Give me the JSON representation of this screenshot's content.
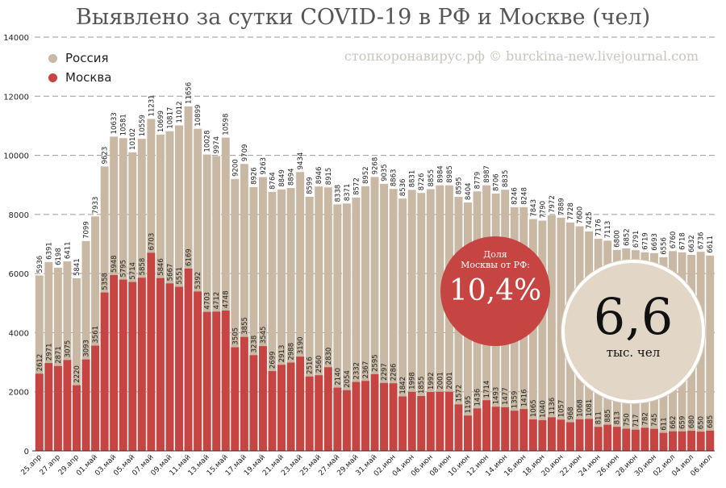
{
  "title": "Выявлено за сутки COVID-19 в РФ и Москве (чел)",
  "source": "стопкоронавирус.рф © burckina-new.livejournal.com",
  "legend": {
    "russia": "Россия",
    "moscow": "Москва"
  },
  "colors": {
    "russia": "#c9b8a3",
    "moscow": "#c64441",
    "grid": "#9a9a9a"
  },
  "share_label_1": "Доля",
  "share_label_2": "Москвы от РФ:",
  "share_value": "10,4%",
  "total_value": "6,6",
  "total_unit": "тыс. чел",
  "chart_data": {
    "type": "bar",
    "stacked": "overlay",
    "ylim": [
      0,
      14000
    ],
    "yticks": [
      0,
      2000,
      4000,
      6000,
      8000,
      10000,
      12000,
      14000
    ],
    "grid": true,
    "legend_position": "top-left",
    "x_tick_labels": [
      "25.апр",
      "27.апр",
      "29.апр",
      "01.май",
      "03.май",
      "05.май",
      "07.май",
      "09.май",
      "11.май",
      "13.май",
      "15.май",
      "17.май",
      "19.май",
      "21.май",
      "23.май",
      "25.май",
      "27.май",
      "29.май",
      "31.май",
      "02.июн",
      "04.июн",
      "06.июн",
      "08.июн",
      "10.июн",
      "12.июн",
      "14.июн",
      "16.июн",
      "18.июн",
      "20.июн",
      "22.июн",
      "24.июн",
      "26.июн",
      "28.июн",
      "30.июн",
      "02.июл",
      "04.июл",
      "06.июл"
    ],
    "series": [
      {
        "name": "Россия",
        "values": [
          5936,
          6391,
          6198,
          6411,
          5841,
          7099,
          7933,
          9623,
          10633,
          10581,
          10102,
          10559,
          11231,
          10699,
          10817,
          11012,
          11656,
          10899,
          10028,
          9974,
          10598,
          9200,
          9709,
          8926,
          9263,
          8764,
          8849,
          8894,
          9434,
          8599,
          8946,
          8915,
          8338,
          8371,
          8572,
          8952,
          9268,
          9035,
          8863,
          8536,
          8831,
          8726,
          8855,
          8984,
          8985,
          8595,
          8404,
          8779,
          8987,
          8706,
          8835,
          8246,
          8248,
          7843,
          7790,
          7972,
          7889,
          7728,
          7600,
          7425,
          7176,
          7113,
          6800,
          6852,
          6791,
          6719,
          6693,
          6556,
          6760,
          6718,
          6632,
          6736,
          6611
        ]
      },
      {
        "name": "Москва",
        "values": [
          2612,
          2971,
          2871,
          3075,
          2220,
          3093,
          3561,
          5358,
          5948,
          5795,
          5714,
          5858,
          6703,
          5846,
          5667,
          5551,
          6169,
          5392,
          4703,
          4712,
          4748,
          3505,
          3855,
          3238,
          3545,
          2699,
          2913,
          2988,
          3190,
          2516,
          2560,
          2830,
          2140,
          2054,
          2332,
          2367,
          2595,
          2297,
          2286,
          1842,
          1998,
          1855,
          1992,
          2001,
          2001,
          1572,
          1195,
          1436,
          1714,
          1493,
          1477,
          1359,
          1416,
          1065,
          1040,
          1136,
          1057,
          968,
          1068,
          1081,
          811,
          885,
          813,
          750,
          717,
          782,
          745,
          611,
          662,
          659,
          680,
          650,
          685
        ]
      }
    ]
  }
}
